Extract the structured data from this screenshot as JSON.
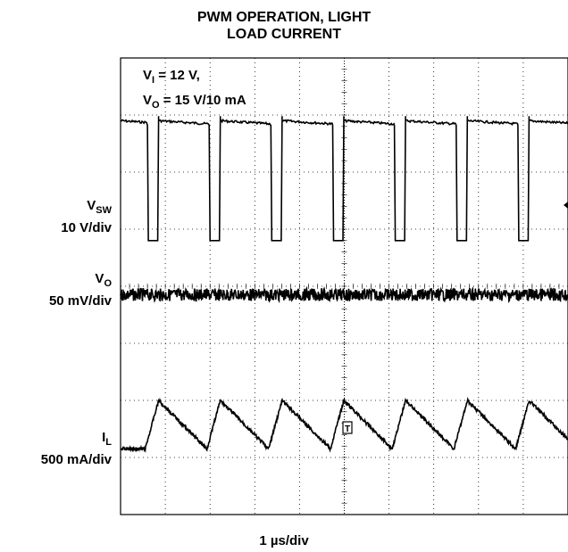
{
  "chart_data": {
    "type": "line",
    "title_line1": "PWM OPERATION, LIGHT",
    "title_line2": "LOAD CURRENT",
    "xlabel": "1 µs/div",
    "condition": {
      "vi_label": "V",
      "vi_sub": "I",
      "vi_value": " = 12 V,",
      "vo_label": "V",
      "vo_sub": "O",
      "vo_value": " = 15 V/10 mA"
    },
    "grid": true,
    "divisions": {
      "x": 10,
      "y": 8
    },
    "period_div": 1.38,
    "series": [
      {
        "name": "V",
        "name_sub": "SW",
        "scale": "10 V/div",
        "kind": "switch",
        "high_div": 1.1,
        "low_div": 3.2,
        "rise_div": [
          0.85,
          2.23,
          3.61,
          4.99,
          6.37,
          7.75,
          9.13
        ],
        "fall_div": [
          0.6,
          1.98,
          3.36,
          4.74,
          6.12,
          7.5,
          8.88
        ],
        "color": "#000000"
      },
      {
        "name": "V",
        "name_sub": "O",
        "scale": "50 mV/div",
        "kind": "noise",
        "level_div": 4.15,
        "color": "#000000"
      },
      {
        "name": "I",
        "name_sub": "L",
        "scale": "500 mA/div",
        "kind": "triangle",
        "peak_div": 6.0,
        "valley_div": 6.85,
        "peak_x_div": [
          0.85,
          2.23,
          3.61,
          4.99,
          6.37,
          7.75,
          9.13
        ],
        "color": "#000000"
      }
    ]
  }
}
